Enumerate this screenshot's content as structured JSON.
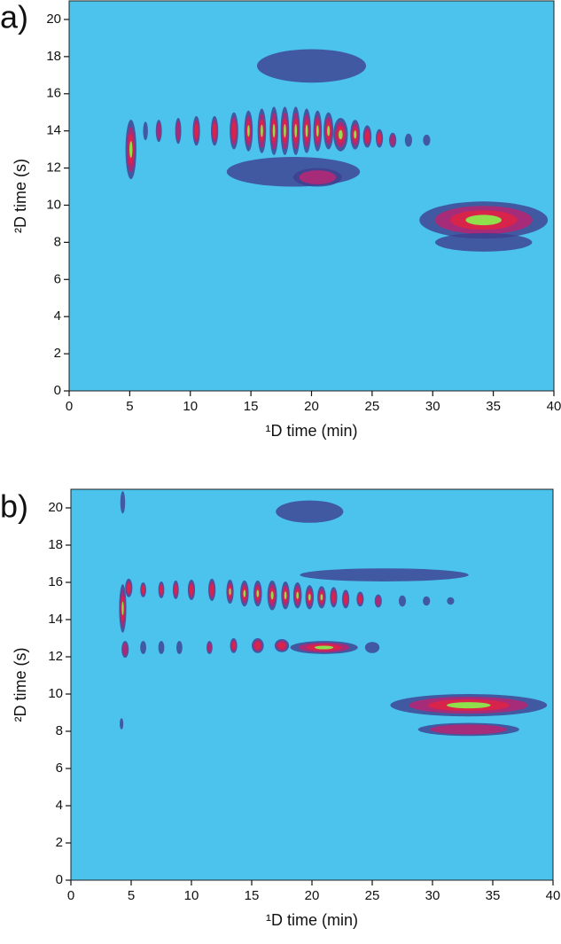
{
  "chart_data": [
    {
      "type": "contour",
      "panel_label": "a)",
      "xlabel": "¹D time (min)",
      "ylabel": "²D time (s)",
      "xlim": [
        0,
        40
      ],
      "ylim": [
        0,
        21
      ],
      "xticks": [
        0,
        5,
        10,
        15,
        20,
        25,
        30,
        35,
        40
      ],
      "yticks": [
        0,
        2,
        4,
        6,
        8,
        10,
        12,
        14,
        16,
        18,
        20
      ],
      "background": "#4cc3ec",
      "level_colors": [
        "#3d3f8e",
        "#a62b78",
        "#d8244a",
        "#8fe04c"
      ],
      "peaks": [
        {
          "x": 5.1,
          "y": 13,
          "sx": 0.45,
          "sy": 1.6,
          "level": 3
        },
        {
          "x": 6.3,
          "y": 14,
          "sx": 0.2,
          "sy": 0.5,
          "level": 0
        },
        {
          "x": 7.4,
          "y": 14,
          "sx": 0.25,
          "sy": 0.6,
          "level": 1
        },
        {
          "x": 9.0,
          "y": 14,
          "sx": 0.25,
          "sy": 0.7,
          "level": 1
        },
        {
          "x": 10.5,
          "y": 14,
          "sx": 0.3,
          "sy": 0.8,
          "level": 2
        },
        {
          "x": 12.0,
          "y": 14,
          "sx": 0.3,
          "sy": 0.8,
          "level": 2
        },
        {
          "x": 13.6,
          "y": 14,
          "sx": 0.35,
          "sy": 1.0,
          "level": 2
        },
        {
          "x": 14.8,
          "y": 14,
          "sx": 0.35,
          "sy": 1.1,
          "level": 3
        },
        {
          "x": 15.9,
          "y": 14,
          "sx": 0.35,
          "sy": 1.2,
          "level": 3
        },
        {
          "x": 16.9,
          "y": 14,
          "sx": 0.35,
          "sy": 1.3,
          "level": 3
        },
        {
          "x": 17.8,
          "y": 14,
          "sx": 0.35,
          "sy": 1.3,
          "level": 3
        },
        {
          "x": 18.7,
          "y": 14,
          "sx": 0.35,
          "sy": 1.3,
          "level": 3
        },
        {
          "x": 19.6,
          "y": 14,
          "sx": 0.35,
          "sy": 1.2,
          "level": 3
        },
        {
          "x": 20.5,
          "y": 14,
          "sx": 0.35,
          "sy": 1.1,
          "level": 3
        },
        {
          "x": 21.4,
          "y": 14,
          "sx": 0.4,
          "sy": 1.0,
          "level": 3
        },
        {
          "x": 22.4,
          "y": 13.8,
          "sx": 0.6,
          "sy": 0.9,
          "level": 3
        },
        {
          "x": 23.6,
          "y": 13.8,
          "sx": 0.4,
          "sy": 0.8,
          "level": 3
        },
        {
          "x": 24.6,
          "y": 13.7,
          "sx": 0.35,
          "sy": 0.6,
          "level": 2
        },
        {
          "x": 25.6,
          "y": 13.6,
          "sx": 0.3,
          "sy": 0.5,
          "level": 2
        },
        {
          "x": 26.7,
          "y": 13.5,
          "sx": 0.3,
          "sy": 0.4,
          "level": 1
        },
        {
          "x": 28.0,
          "y": 13.5,
          "sx": 0.3,
          "sy": 0.35,
          "level": 0
        },
        {
          "x": 29.5,
          "y": 13.5,
          "sx": 0.3,
          "sy": 0.3,
          "level": 0
        },
        {
          "x": 18.5,
          "y": 11.8,
          "sx": 5.5,
          "sy": 0.8,
          "level": 0
        },
        {
          "x": 20.5,
          "y": 11.5,
          "sx": 2.0,
          "sy": 0.5,
          "level": 1
        },
        {
          "x": 20.0,
          "y": 17.5,
          "sx": 4.5,
          "sy": 0.9,
          "level": 0
        },
        {
          "x": 34.2,
          "y": 9.2,
          "sx": 5.3,
          "sy": 1.0,
          "level": 3
        },
        {
          "x": 34.2,
          "y": 8.0,
          "sx": 4.0,
          "sy": 0.5,
          "level": 0
        }
      ]
    },
    {
      "type": "contour",
      "panel_label": "b)",
      "xlabel": "¹D time (min)",
      "ylabel": "²D time (s)",
      "xlim": [
        0,
        40
      ],
      "ylim": [
        0,
        21
      ],
      "xticks": [
        0,
        5,
        10,
        15,
        20,
        25,
        30,
        35,
        40
      ],
      "yticks": [
        0,
        2,
        4,
        6,
        8,
        10,
        12,
        14,
        16,
        18,
        20
      ],
      "background": "#4cc3ec",
      "level_colors": [
        "#3d3f8e",
        "#a62b78",
        "#d8244a",
        "#8fe04c"
      ],
      "peaks": [
        {
          "x": 4.3,
          "y": 14.6,
          "sx": 0.3,
          "sy": 1.3,
          "level": 3
        },
        {
          "x": 4.8,
          "y": 15.7,
          "sx": 0.3,
          "sy": 0.5,
          "level": 2
        },
        {
          "x": 4.3,
          "y": 20.3,
          "sx": 0.2,
          "sy": 0.6,
          "level": 0
        },
        {
          "x": 4.2,
          "y": 8.4,
          "sx": 0.15,
          "sy": 0.3,
          "level": 0
        },
        {
          "x": 6.0,
          "y": 15.6,
          "sx": 0.25,
          "sy": 0.4,
          "level": 2
        },
        {
          "x": 7.5,
          "y": 15.6,
          "sx": 0.25,
          "sy": 0.45,
          "level": 2
        },
        {
          "x": 8.7,
          "y": 15.6,
          "sx": 0.25,
          "sy": 0.5,
          "level": 2
        },
        {
          "x": 10.0,
          "y": 15.6,
          "sx": 0.3,
          "sy": 0.55,
          "level": 2
        },
        {
          "x": 11.7,
          "y": 15.6,
          "sx": 0.3,
          "sy": 0.6,
          "level": 2
        },
        {
          "x": 13.2,
          "y": 15.5,
          "sx": 0.3,
          "sy": 0.65,
          "level": 3
        },
        {
          "x": 14.4,
          "y": 15.4,
          "sx": 0.35,
          "sy": 0.7,
          "level": 3
        },
        {
          "x": 15.5,
          "y": 15.4,
          "sx": 0.35,
          "sy": 0.7,
          "level": 3
        },
        {
          "x": 16.7,
          "y": 15.3,
          "sx": 0.4,
          "sy": 0.8,
          "level": 3
        },
        {
          "x": 17.8,
          "y": 15.3,
          "sx": 0.35,
          "sy": 0.75,
          "level": 3
        },
        {
          "x": 18.8,
          "y": 15.3,
          "sx": 0.35,
          "sy": 0.7,
          "level": 3
        },
        {
          "x": 19.8,
          "y": 15.2,
          "sx": 0.35,
          "sy": 0.65,
          "level": 3
        },
        {
          "x": 20.8,
          "y": 15.2,
          "sx": 0.35,
          "sy": 0.6,
          "level": 3
        },
        {
          "x": 21.8,
          "y": 15.2,
          "sx": 0.3,
          "sy": 0.55,
          "level": 2
        },
        {
          "x": 22.8,
          "y": 15.1,
          "sx": 0.3,
          "sy": 0.5,
          "level": 2
        },
        {
          "x": 24.0,
          "y": 15.1,
          "sx": 0.3,
          "sy": 0.4,
          "level": 2
        },
        {
          "x": 25.5,
          "y": 15.0,
          "sx": 0.3,
          "sy": 0.35,
          "level": 1
        },
        {
          "x": 27.5,
          "y": 15.0,
          "sx": 0.3,
          "sy": 0.3,
          "level": 0
        },
        {
          "x": 29.5,
          "y": 15.0,
          "sx": 0.3,
          "sy": 0.25,
          "level": 0
        },
        {
          "x": 31.5,
          "y": 15.0,
          "sx": 0.3,
          "sy": 0.2,
          "level": 0
        },
        {
          "x": 4.5,
          "y": 12.4,
          "sx": 0.3,
          "sy": 0.45,
          "level": 1
        },
        {
          "x": 6.0,
          "y": 12.5,
          "sx": 0.25,
          "sy": 0.35,
          "level": 0
        },
        {
          "x": 7.5,
          "y": 12.5,
          "sx": 0.25,
          "sy": 0.35,
          "level": 0
        },
        {
          "x": 9.0,
          "y": 12.5,
          "sx": 0.25,
          "sy": 0.35,
          "level": 0
        },
        {
          "x": 11.5,
          "y": 12.5,
          "sx": 0.25,
          "sy": 0.35,
          "level": 1
        },
        {
          "x": 13.5,
          "y": 12.6,
          "sx": 0.3,
          "sy": 0.4,
          "level": 2
        },
        {
          "x": 15.5,
          "y": 12.6,
          "sx": 0.5,
          "sy": 0.4,
          "level": 2
        },
        {
          "x": 17.5,
          "y": 12.6,
          "sx": 0.6,
          "sy": 0.35,
          "level": 2
        },
        {
          "x": 21.0,
          "y": 12.5,
          "sx": 2.8,
          "sy": 0.35,
          "level": 3
        },
        {
          "x": 25.0,
          "y": 12.5,
          "sx": 0.6,
          "sy": 0.3,
          "level": 0
        },
        {
          "x": 26.0,
          "y": 16.4,
          "sx": 7.0,
          "sy": 0.35,
          "level": 0
        },
        {
          "x": 19.8,
          "y": 19.8,
          "sx": 2.8,
          "sy": 0.6,
          "level": 0
        },
        {
          "x": 33.0,
          "y": 9.4,
          "sx": 6.5,
          "sy": 0.6,
          "level": 3
        },
        {
          "x": 33.0,
          "y": 8.1,
          "sx": 4.2,
          "sy": 0.35,
          "level": 1
        }
      ]
    }
  ]
}
